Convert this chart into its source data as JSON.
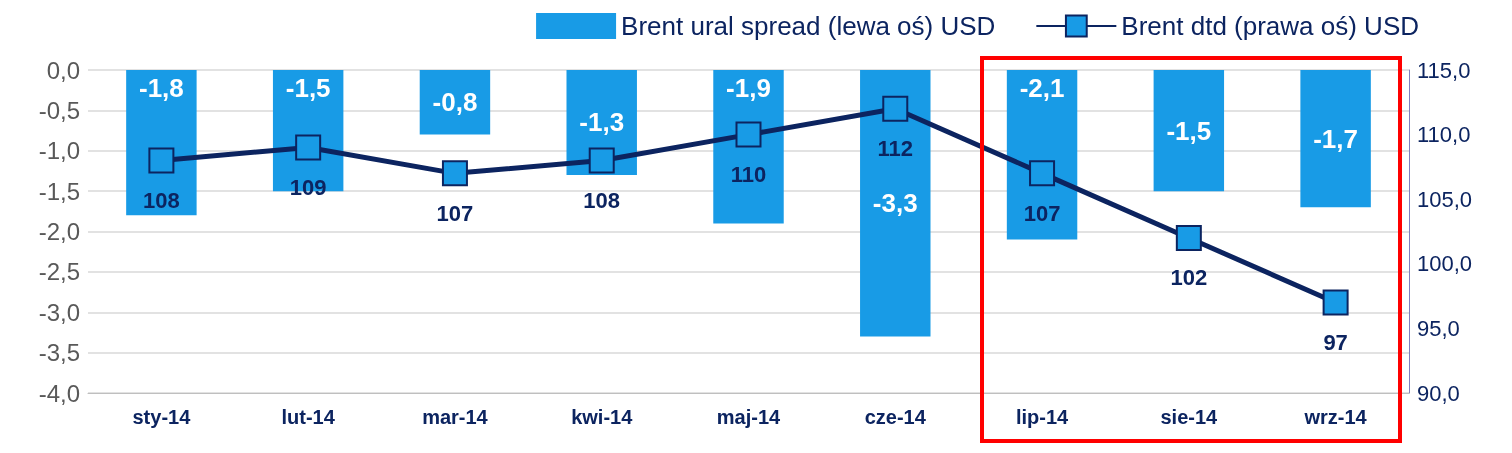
{
  "chart_data": {
    "type": "bar",
    "categories": [
      "sty-14",
      "lut-14",
      "mar-14",
      "kwi-14",
      "maj-14",
      "cze-14",
      "lip-14",
      "sie-14",
      "wrz-14"
    ],
    "series": [
      {
        "name": "Brent ural spread (lewa oś) USD",
        "color": "#189be6",
        "values": [
          -1.8,
          -1.5,
          -0.8,
          -1.3,
          -1.9,
          -3.3,
          -2.1,
          -1.5,
          -1.7
        ],
        "value_labels": [
          "-1,8",
          "-1,5",
          "-0,8",
          "-1,3",
          "-1,9",
          "-3,3",
          "-2,1",
          "-1,5",
          "-1,7"
        ]
      },
      {
        "name": "Brent dtd (prawa oś) USD",
        "type": "line",
        "axis": "y2",
        "color": "#0c2460",
        "marker": "square",
        "values": [
          108,
          109,
          107,
          108,
          110,
          112,
          107,
          102,
          97
        ],
        "value_labels": [
          "108",
          "109",
          "107",
          "108",
          "110",
          "112",
          "107",
          "102",
          "97"
        ]
      }
    ],
    "ylim": [
      -4,
      0
    ],
    "yticks": [
      {
        "value": -4,
        "label": "-4,0"
      },
      {
        "value": -3.5,
        "label": "-3,5"
      },
      {
        "value": -3,
        "label": "-3,0"
      },
      {
        "value": -2.5,
        "label": "-2,5"
      },
      {
        "value": -2,
        "label": "-2,0"
      },
      {
        "value": -1.5,
        "label": "-1,5"
      },
      {
        "value": -1,
        "label": "-1,0"
      },
      {
        "value": -0.5,
        "label": "-0,5"
      },
      {
        "value": 0,
        "label": "0,0"
      }
    ],
    "y2lim": [
      90,
      115
    ],
    "y2ticks": [
      {
        "value": 90,
        "label": "90,0"
      },
      {
        "value": 95,
        "label": "95,0"
      },
      {
        "value": 100,
        "label": "100,0"
      },
      {
        "value": 105,
        "label": "105,0"
      },
      {
        "value": 110,
        "label": "110,0"
      },
      {
        "value": 115,
        "label": "115,0"
      }
    ],
    "grid": "y",
    "legend": "top right"
  }
}
